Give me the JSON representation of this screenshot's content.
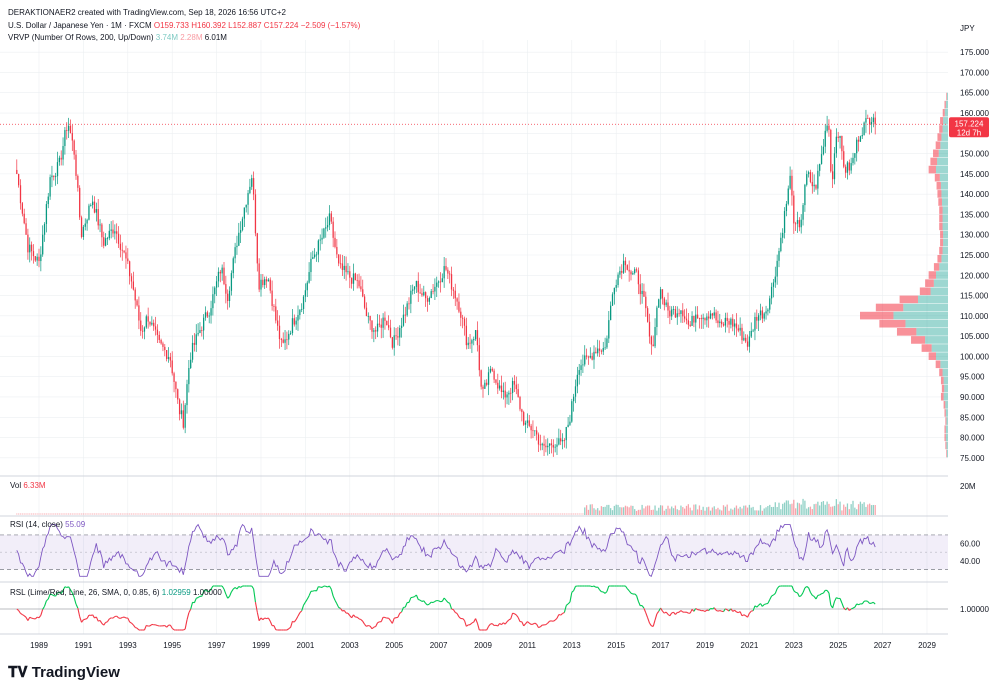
{
  "header": {
    "author_line": "DERAKTIONAER2 created with TradingView.com, Sep 18, 2026 16:56 UTC+2"
  },
  "legend": {
    "symbol": "U.S. Dollar / Japanese Yen · 1M · FXCM",
    "o": "O159.733",
    "h": "H160.392",
    "l": "L152.887",
    "c": "C157.224",
    "chg": "−2.509 (−1.57%)",
    "vrvp_label": "VRVP (Number Of Rows, 200, Up/Down)",
    "vrvp_up": "3.74M",
    "vrvp_down": "2.28M",
    "vrvp_total": "6.01M"
  },
  "currency": "JPY",
  "price_badge": {
    "price": "157.224",
    "countdown": "12d 7h"
  },
  "footer": {
    "logo": "TradingView"
  },
  "colors": {
    "up": "#089981",
    "down": "#f23645",
    "rsi": "#7e57c2",
    "grid": "#eceff2",
    "vp_up": "#26a69a",
    "vp_down": "#f23645"
  },
  "panes": {
    "volume": {
      "label": "Vol",
      "value": "6.33M",
      "axis_label": "20M"
    },
    "rsi": {
      "label": "RSI (14, close)",
      "value": "55.09",
      "axis_labels": [
        "60.00",
        "40.00"
      ],
      "bands": [
        30,
        70
      ]
    },
    "rsl": {
      "label": "RSL (Lime/Red, Line, 26, SMA, 0, 0.85, 6)",
      "value": "1.02959",
      "value2": "1.00000",
      "axis_label": "1.00000"
    }
  },
  "chart_data": {
    "type": "candlestick",
    "title": "U.S. Dollar / Japanese Yen · 1M · FXCM",
    "interval": "1M",
    "xlabel": "",
    "ylabel": "",
    "ylim": [
      72,
      178
    ],
    "x_ticks": [
      "1989",
      "1991",
      "1993",
      "1995",
      "1997",
      "1999",
      "2001",
      "2003",
      "2005",
      "2007",
      "2009",
      "2011",
      "2013",
      "2015",
      "2017",
      "2019",
      "2021",
      "2023",
      "2025",
      "2027",
      "2029"
    ],
    "y_ticks": [
      "75.000",
      "80.000",
      "85.000",
      "90.000",
      "95.000",
      "100.000",
      "105.000",
      "110.000",
      "115.000",
      "120.000",
      "125.000",
      "130.000",
      "135.000",
      "140.000",
      "145.000",
      "150.000",
      "155.000",
      "160.000",
      "165.000",
      "170.000",
      "175.000"
    ],
    "last_price": 157.224,
    "close_path": [
      [
        1988.0,
        145
      ],
      [
        1988.5,
        127
      ],
      [
        1989.0,
        123
      ],
      [
        1989.5,
        144
      ],
      [
        1989.9,
        147
      ],
      [
        1990.3,
        158
      ],
      [
        1990.6,
        150
      ],
      [
        1990.9,
        130
      ],
      [
        1991.4,
        139
      ],
      [
        1991.9,
        128
      ],
      [
        1992.4,
        132
      ],
      [
        1992.9,
        124
      ],
      [
        1993.2,
        118
      ],
      [
        1993.6,
        106
      ],
      [
        1993.9,
        110
      ],
      [
        1994.4,
        103
      ],
      [
        1994.9,
        100
      ],
      [
        1995.3,
        87
      ],
      [
        1995.5,
        84
      ],
      [
        1995.8,
        100
      ],
      [
        1996.2,
        106
      ],
      [
        1996.7,
        112
      ],
      [
        1997.2,
        122
      ],
      [
        1997.5,
        115
      ],
      [
        1997.9,
        128
      ],
      [
        1998.3,
        138
      ],
      [
        1998.6,
        145
      ],
      [
        1998.9,
        118
      ],
      [
        1999.3,
        120
      ],
      [
        1999.7,
        108
      ],
      [
        1999.95,
        102
      ],
      [
        2000.4,
        108
      ],
      [
        2000.9,
        114
      ],
      [
        2001.3,
        124
      ],
      [
        2001.9,
        131
      ],
      [
        2002.1,
        134
      ],
      [
        2002.5,
        122
      ],
      [
        2002.9,
        120
      ],
      [
        2003.4,
        118
      ],
      [
        2003.8,
        109
      ],
      [
        2004.2,
        106
      ],
      [
        2004.6,
        110
      ],
      [
        2004.95,
        103
      ],
      [
        2005.5,
        111
      ],
      [
        2005.95,
        118
      ],
      [
        2006.4,
        114
      ],
      [
        2006.9,
        118
      ],
      [
        2007.3,
        122
      ],
      [
        2007.7,
        116
      ],
      [
        2007.95,
        112
      ],
      [
        2008.3,
        103
      ],
      [
        2008.7,
        106
      ],
      [
        2008.95,
        90
      ],
      [
        2009.4,
        97
      ],
      [
        2009.9,
        90
      ],
      [
        2010.4,
        93
      ],
      [
        2010.9,
        83
      ],
      [
        2011.3,
        82
      ],
      [
        2011.7,
        77
      ],
      [
        2012.2,
        79
      ],
      [
        2012.6,
        78
      ],
      [
        2012.95,
        86
      ],
      [
        2013.3,
        98
      ],
      [
        2013.7,
        99
      ],
      [
        2014.1,
        102
      ],
      [
        2014.5,
        102
      ],
      [
        2014.9,
        118
      ],
      [
        2015.4,
        124
      ],
      [
        2015.7,
        120
      ],
      [
        2015.95,
        120
      ],
      [
        2016.3,
        112
      ],
      [
        2016.6,
        101
      ],
      [
        2016.95,
        117
      ],
      [
        2017.3,
        111
      ],
      [
        2017.6,
        111
      ],
      [
        2017.95,
        112
      ],
      [
        2018.3,
        107
      ],
      [
        2018.6,
        111
      ],
      [
        2018.95,
        110
      ],
      [
        2019.3,
        111
      ],
      [
        2019.7,
        107
      ],
      [
        2019.95,
        109
      ],
      [
        2020.3,
        108
      ],
      [
        2020.7,
        105
      ],
      [
        2020.95,
        103
      ],
      [
        2021.3,
        110
      ],
      [
        2021.7,
        111
      ],
      [
        2021.95,
        115
      ],
      [
        2022.3,
        125
      ],
      [
        2022.7,
        139
      ],
      [
        2022.9,
        146
      ],
      [
        2022.95,
        131
      ],
      [
        2023.3,
        133
      ],
      [
        2023.6,
        145
      ],
      [
        2023.95,
        141
      ],
      [
        2024.3,
        151
      ],
      [
        2024.55,
        160
      ],
      [
        2024.7,
        142
      ],
      [
        2024.95,
        157
      ],
      [
        2025.3,
        146
      ],
      [
        2025.6,
        147
      ],
      [
        2025.95,
        155
      ],
      [
        2026.3,
        158
      ],
      [
        2026.6,
        160
      ],
      [
        2026.72,
        157.224
      ]
    ],
    "volume_profile": [
      [
        76,
        0.02
      ],
      [
        78,
        0.03
      ],
      [
        80,
        0.04
      ],
      [
        82,
        0.04
      ],
      [
        84,
        0.03
      ],
      [
        86,
        0.04
      ],
      [
        88,
        0.05
      ],
      [
        90,
        0.08
      ],
      [
        92,
        0.07
      ],
      [
        94,
        0.08
      ],
      [
        96,
        0.1
      ],
      [
        98,
        0.14
      ],
      [
        100,
        0.22
      ],
      [
        102,
        0.3
      ],
      [
        104,
        0.42
      ],
      [
        106,
        0.58
      ],
      [
        108,
        0.78
      ],
      [
        110,
        1.0
      ],
      [
        112,
        0.82
      ],
      [
        114,
        0.55
      ],
      [
        116,
        0.32
      ],
      [
        118,
        0.26
      ],
      [
        120,
        0.22
      ],
      [
        122,
        0.16
      ],
      [
        124,
        0.12
      ],
      [
        126,
        0.1
      ],
      [
        128,
        0.09
      ],
      [
        130,
        0.09
      ],
      [
        132,
        0.1
      ],
      [
        134,
        0.1
      ],
      [
        136,
        0.1
      ],
      [
        138,
        0.11
      ],
      [
        140,
        0.12
      ],
      [
        142,
        0.13
      ],
      [
        144,
        0.15
      ],
      [
        146,
        0.22
      ],
      [
        148,
        0.2
      ],
      [
        150,
        0.17
      ],
      [
        152,
        0.14
      ],
      [
        154,
        0.12
      ],
      [
        156,
        0.1
      ],
      [
        158,
        0.09
      ],
      [
        160,
        0.06
      ],
      [
        162,
        0.04
      ],
      [
        164,
        0.02
      ]
    ],
    "volume_start_year": 2013.5
  }
}
